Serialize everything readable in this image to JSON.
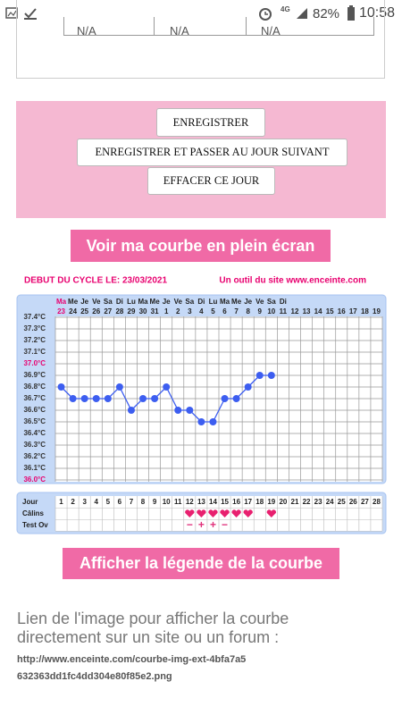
{
  "status_bar": {
    "network": "4G",
    "battery": "82%",
    "time": "10:58"
  },
  "previous_table": {
    "cells": [
      "N/A",
      "N/A",
      "N/A"
    ]
  },
  "actions": {
    "buttons": [
      "ENREGISTRER",
      "ENREGISTRER ET PASSER AU JOUR SUIVANT",
      "EFFACER CE JOUR"
    ]
  },
  "fullscreen_button": "Voir ma courbe en plein écran",
  "chart_data": {
    "type": "line",
    "title": "DEBUT DU CYCLE LE: 23/03/2021",
    "subtitle": "Un outil du site www.enceinte.com",
    "weekdays": [
      "Ma",
      "Me",
      "Je",
      "Ve",
      "Sa",
      "Di",
      "Lu",
      "Ma",
      "Me",
      "Je",
      "Ve",
      "Sa",
      "Di",
      "Lu",
      "Ma",
      "Me",
      "Je",
      "Ve",
      "Sa",
      "Di",
      null,
      null,
      null,
      null,
      null,
      null,
      null,
      null
    ],
    "categories": [
      "23",
      "24",
      "25",
      "26",
      "27",
      "28",
      "29",
      "30",
      "31",
      "1",
      "2",
      "3",
      "4",
      "5",
      "6",
      "7",
      "8",
      "9",
      "10",
      "11",
      "12",
      "13",
      "14",
      "15",
      "16",
      "17",
      "18",
      "19"
    ],
    "values": [
      36.8,
      36.7,
      36.7,
      36.7,
      36.7,
      36.8,
      36.6,
      36.7,
      36.7,
      36.8,
      36.6,
      36.6,
      36.5,
      36.5,
      36.7,
      36.7,
      36.8,
      36.9,
      36.9,
      null,
      null,
      null,
      null,
      null,
      null,
      null,
      null,
      null
    ],
    "color": "#3d5ef0",
    "ylim": [
      36.0,
      37.4
    ],
    "yticks": [
      {
        "value": 37.4,
        "label": "37.4°C"
      },
      {
        "value": 37.3,
        "label": "37.3°C"
      },
      {
        "value": 37.2,
        "label": "37.2°C"
      },
      {
        "value": 37.1,
        "label": "37.1°C"
      },
      {
        "value": 37.0,
        "label": "37.0°C"
      },
      {
        "value": 36.9,
        "label": "36.9°C"
      },
      {
        "value": 36.8,
        "label": "36.8°C"
      },
      {
        "value": 36.7,
        "label": "36.7°C"
      },
      {
        "value": 36.6,
        "label": "36.6°C"
      },
      {
        "value": 36.5,
        "label": "36.5°C"
      },
      {
        "value": 36.4,
        "label": "36.4°C"
      },
      {
        "value": 36.3,
        "label": "36.3°C"
      },
      {
        "value": 36.2,
        "label": "36.2°C"
      },
      {
        "value": 36.1,
        "label": "36.1°C"
      },
      {
        "value": 36.0,
        "label": "36.0°C"
      }
    ],
    "ytick_colors": [
      "#333",
      "#333",
      "#333",
      "#333",
      "#e8006f",
      "#333",
      "#333",
      "#333",
      "#333",
      "#333",
      "#333",
      "#333",
      "#333",
      "#333",
      "#e8006f"
    ],
    "grid": true
  },
  "cycle_table": {
    "row_labels": [
      "Jour",
      "Câlins",
      "Test Ov"
    ],
    "days": [
      1,
      2,
      3,
      4,
      5,
      6,
      7,
      8,
      9,
      10,
      11,
      12,
      13,
      14,
      15,
      16,
      17,
      18,
      19,
      20,
      21,
      22,
      23,
      24,
      25,
      26,
      27,
      28
    ],
    "calins": [
      false,
      false,
      false,
      false,
      false,
      false,
      false,
      false,
      false,
      false,
      false,
      true,
      true,
      true,
      true,
      true,
      true,
      false,
      true,
      false,
      false,
      false,
      false,
      false,
      false,
      false,
      false,
      false
    ],
    "test_ov": [
      null,
      null,
      null,
      null,
      null,
      null,
      null,
      null,
      null,
      null,
      null,
      "−",
      "+",
      "+",
      "−",
      null,
      null,
      null,
      null,
      null,
      null,
      null,
      null,
      null,
      null,
      null,
      null,
      null
    ]
  },
  "legend_button": "Afficher la légende de la courbe",
  "link_section": {
    "label": "Lien de l'image pour afficher la courbe directement sur un site ou un forum :",
    "url": "http://www.enceinte.com/courbe-img-ext-4bfa7a5632363dd1fc4dd304e80f85e2.png"
  }
}
